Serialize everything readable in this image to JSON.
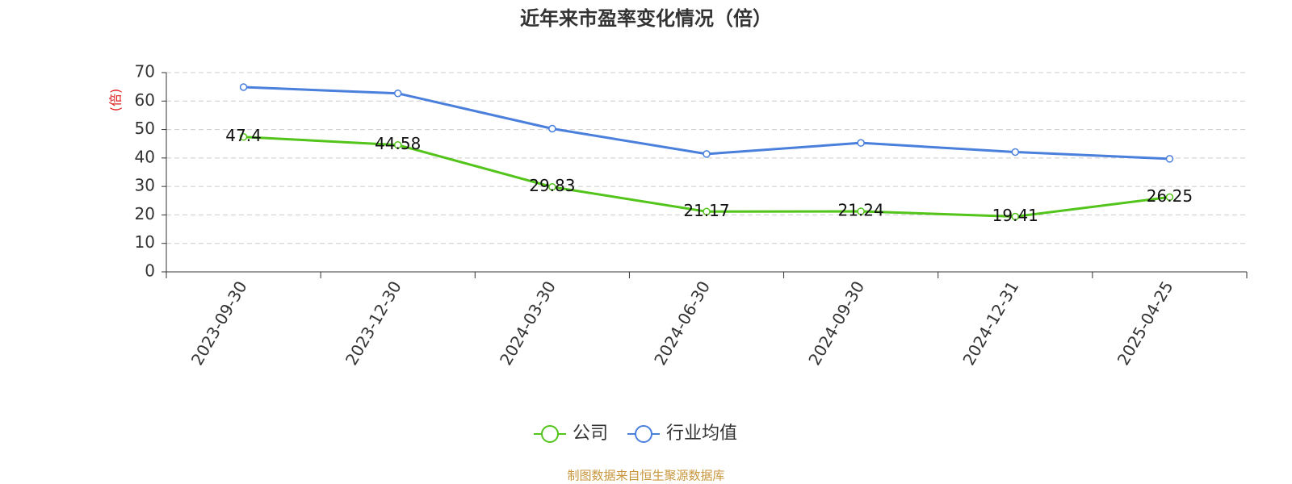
{
  "chart_data": {
    "type": "line",
    "title": "近年来市盈率变化情况（倍）",
    "y_label": "(倍)",
    "categories": [
      "2023-09-30",
      "2023-12-30",
      "2024-03-30",
      "2024-06-30",
      "2024-09-30",
      "2024-12-31",
      "2025-04-25"
    ],
    "series": [
      {
        "name": "公司",
        "color": "#52c41a",
        "labels": true,
        "values": [
          47.4,
          44.58,
          29.83,
          21.17,
          21.24,
          19.41,
          26.25
        ]
      },
      {
        "name": "行业均值",
        "color": "#4a7fdc",
        "labels": false,
        "values": [
          64.9,
          62.7,
          50.3,
          41.4,
          45.3,
          42.1,
          39.7
        ]
      }
    ],
    "ylim": [
      0,
      70
    ],
    "yticks": [
      0,
      10,
      20,
      30,
      40,
      50,
      60,
      70
    ],
    "grid": true,
    "legend": "bottom",
    "source": "制图数据来自恒生聚源数据库"
  }
}
